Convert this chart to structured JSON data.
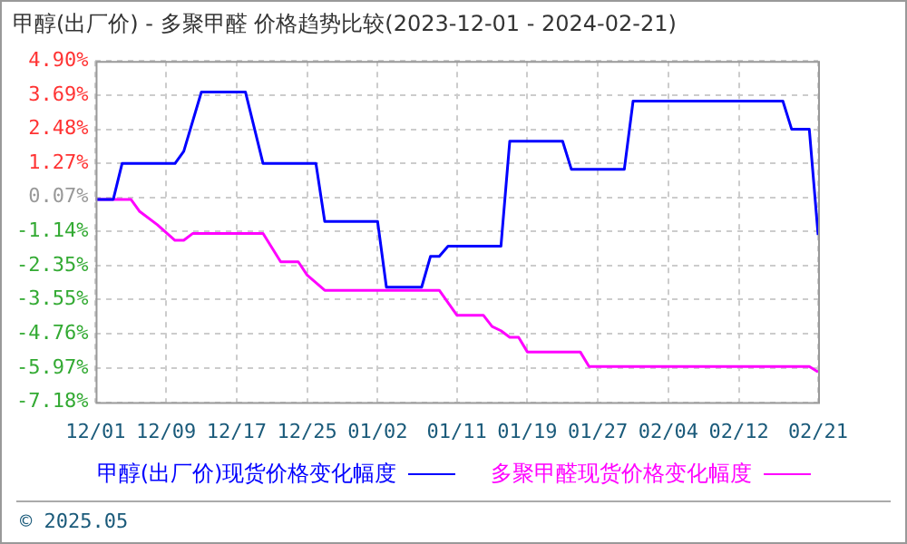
{
  "chart_data": {
    "type": "line",
    "title": "甲醇(出厂价) - 多聚甲醛 价格趋势比较(2023-12-01 - 2024-02-21)",
    "series": [
      {
        "name": "甲醇(出厂价)现货价格变化幅度",
        "color": "#0000ff",
        "x": [
          "2023-12-01",
          "2023-12-03",
          "2023-12-04",
          "2023-12-10",
          "2023-12-11",
          "2023-12-13",
          "2023-12-18",
          "2023-12-20",
          "2023-12-26",
          "2023-12-27",
          "2024-01-02",
          "2024-01-03",
          "2024-01-07",
          "2024-01-08",
          "2024-01-09",
          "2024-01-10",
          "2024-01-16",
          "2024-01-17",
          "2024-01-23",
          "2024-01-24",
          "2024-01-30",
          "2024-01-31",
          "2024-02-17",
          "2024-02-18",
          "2024-02-20",
          "2024-02-21"
        ],
        "values": [
          0,
          0,
          1.27,
          1.27,
          1.7,
          3.8,
          3.8,
          1.27,
          1.27,
          -0.78,
          -0.78,
          -3.11,
          -3.11,
          -2.02,
          -2.02,
          -1.66,
          -1.66,
          2.06,
          2.06,
          1.06,
          1.06,
          3.48,
          3.48,
          2.48,
          2.48,
          -1.26
        ]
      },
      {
        "name": "多聚甲醛现货价格变化幅度",
        "color": "#ff00ff",
        "x": [
          "2023-12-01",
          "2023-12-05",
          "2023-12-06",
          "2023-12-08",
          "2023-12-10",
          "2023-12-11",
          "2023-12-12",
          "2023-12-20",
          "2023-12-22",
          "2023-12-24",
          "2023-12-25",
          "2023-12-27",
          "2024-01-09",
          "2024-01-11",
          "2024-01-14",
          "2024-01-15",
          "2024-01-16",
          "2024-01-17",
          "2024-01-18",
          "2024-01-19",
          "2024-01-25",
          "2024-01-26",
          "2024-02-20",
          "2024-02-21"
        ],
        "values": [
          0,
          0,
          -0.43,
          -0.9,
          -1.45,
          -1.45,
          -1.21,
          -1.21,
          -2.21,
          -2.21,
          -2.68,
          -3.22,
          -3.22,
          -4.1,
          -4.1,
          -4.5,
          -4.65,
          -4.88,
          -4.88,
          -5.4,
          -5.4,
          -5.92,
          -5.92,
          -6.11
        ]
      }
    ],
    "xlim": [
      "2023-12-01",
      "2024-02-21"
    ],
    "xticks": [
      {
        "value": "2023-12-01",
        "label": "12/01"
      },
      {
        "value": "2023-12-09",
        "label": "12/09"
      },
      {
        "value": "2023-12-17",
        "label": "12/17"
      },
      {
        "value": "2023-12-25",
        "label": "12/25"
      },
      {
        "value": "2024-01-02",
        "label": "01/02"
      },
      {
        "value": "2024-01-11",
        "label": "01/11"
      },
      {
        "value": "2024-01-19",
        "label": "01/19"
      },
      {
        "value": "2024-01-27",
        "label": "01/27"
      },
      {
        "value": "2024-02-04",
        "label": "02/04"
      },
      {
        "value": "2024-02-12",
        "label": "02/12"
      },
      {
        "value": "2024-02-21",
        "label": "02/21"
      }
    ],
    "ylim": [
      -7.18,
      4.9
    ],
    "yticks": [
      {
        "value": -7.18,
        "label": "-7.18%"
      },
      {
        "value": -5.97,
        "label": "-5.97%"
      },
      {
        "value": -4.76,
        "label": "-4.76%"
      },
      {
        "value": -3.55,
        "label": "-3.55%"
      },
      {
        "value": -2.35,
        "label": "-2.35%"
      },
      {
        "value": -1.14,
        "label": "-1.14%"
      },
      {
        "value": 0.07,
        "label": "0.07%"
      },
      {
        "value": 1.27,
        "label": "1.27%"
      },
      {
        "value": 2.48,
        "label": "2.48%"
      },
      {
        "value": 3.69,
        "label": "3.69%"
      },
      {
        "value": 4.9,
        "label": "4.90%"
      }
    ],
    "grid": true,
    "legend": "bottom",
    "marker": "none",
    "line_style": "solid",
    "annotations": [
      "© 2025.05"
    ]
  }
}
